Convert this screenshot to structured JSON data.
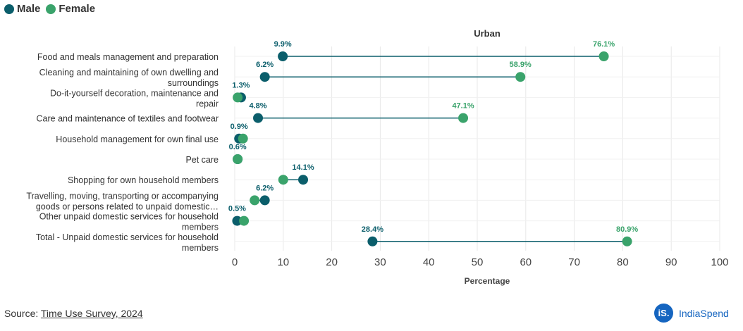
{
  "chart_data": {
    "type": "dumbbell",
    "title": "Urban",
    "xlabel": "Percentage",
    "xlim": [
      0,
      100
    ],
    "xticks": [
      0,
      10,
      20,
      30,
      40,
      50,
      60,
      70,
      80,
      90,
      100
    ],
    "legend": [
      {
        "name": "Male",
        "color": "#0b5e6b"
      },
      {
        "name": "Female",
        "color": "#3aa36b"
      }
    ],
    "legend_position": "top-left",
    "categories": [
      "Food and meals management and preparation",
      "Cleaning and maintaining of own dwelling and surroundings",
      "Do-it-yourself decoration, maintenance and repair",
      "Care and maintenance of textiles and footwear",
      "Household management for own final use",
      "Pet care",
      "Shopping for own household members",
      "Travelling, moving, transporting or accompanying goods or persons related to unpaid domestic…",
      "Other unpaid domestic services for household members",
      "Total - Unpaid domestic services for household members"
    ],
    "series": [
      {
        "name": "Male",
        "values": [
          9.9,
          6.2,
          1.3,
          4.8,
          0.9,
          0.6,
          14.1,
          6.2,
          0.5,
          28.4
        ]
      },
      {
        "name": "Female",
        "values": [
          76.1,
          58.9,
          0.6,
          47.1,
          1.7,
          0.6,
          10.0,
          4.1,
          1.9,
          80.9
        ]
      }
    ],
    "data_labels": [
      {
        "male": "9.9%",
        "female": "76.1%"
      },
      {
        "male": "6.2%",
        "female": "58.9%"
      },
      {
        "male": "1.3%"
      },
      {
        "male": "4.8%",
        "female": "47.1%"
      },
      {
        "male": "0.9%"
      },
      {
        "male": "0.6%"
      },
      {
        "male": "14.1%"
      },
      {
        "male": "6.2%"
      },
      {
        "male": "0.5%"
      },
      {
        "male": "28.4%",
        "female": "80.9%"
      }
    ]
  },
  "source": {
    "prefix": "Source: ",
    "link": "Time Use Survey, 2024"
  },
  "brand": {
    "logo": "iS.",
    "name": "IndiaSpend"
  }
}
